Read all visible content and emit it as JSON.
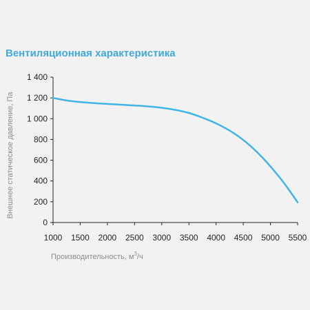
{
  "chart_data": {
    "type": "line",
    "title": "Вентиляционная характеристика",
    "xlabel": "Производительность, м³/ч",
    "xlabel_main": "Производительность, м",
    "xlabel_sup": "3",
    "xlabel_tail": "/ч",
    "ylabel": "Внешнее статическое давление, Па",
    "xlim": [
      1000,
      5500
    ],
    "ylim": [
      0,
      1400
    ],
    "x_ticks": [
      1000,
      1500,
      2000,
      2500,
      3000,
      3500,
      4000,
      4500,
      5000,
      5500
    ],
    "y_ticks": [
      0,
      200,
      400,
      600,
      800,
      1000,
      1200,
      1400
    ],
    "x_tick_labels": [
      "1000",
      "1500",
      "2000",
      "2500",
      "3000",
      "3500",
      "4000",
      "4500",
      "5000",
      "5500"
    ],
    "y_tick_labels": [
      "0",
      "200",
      "400",
      "600",
      "800",
      "1 000",
      "1 200",
      "1 400"
    ],
    "grid": false,
    "series": [
      {
        "color": "#3fb4e6",
        "x": [
          1000,
          1250,
          1500,
          1750,
          2000,
          2250,
          2500,
          2750,
          3000,
          3250,
          3500,
          3750,
          4000,
          4250,
          4500,
          4750,
          5000,
          5250,
          5500
        ],
        "y": [
          1200,
          1175,
          1160,
          1150,
          1142,
          1135,
          1127,
          1118,
          1105,
          1085,
          1055,
          1010,
          955,
          885,
          795,
          680,
          540,
          380,
          195
        ]
      }
    ],
    "colors": {
      "title": "#3fa9dc",
      "axis": "#222222",
      "axis_title": "#8c8c8c",
      "background": "#f2f2f2"
    }
  }
}
